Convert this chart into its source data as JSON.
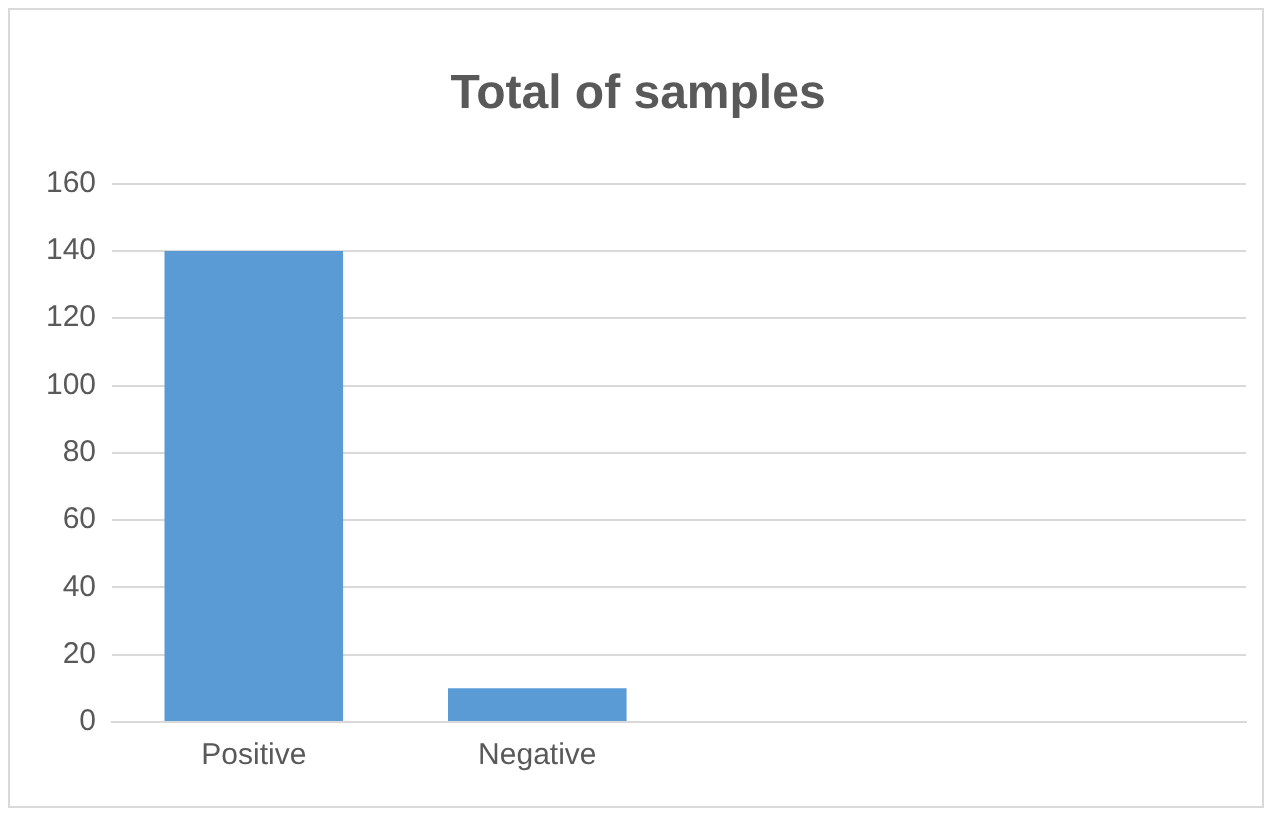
{
  "chart_data": {
    "type": "bar",
    "title": "Total of samples",
    "categories": [
      "Positive",
      "Negative",
      null,
      null
    ],
    "values": [
      140,
      10,
      null,
      null
    ],
    "color": "#5b9bd5",
    "ylim": [
      0,
      160
    ],
    "yticks": [
      0,
      20,
      40,
      60,
      80,
      100,
      120,
      140,
      160
    ],
    "grid": "y",
    "legend": false
  }
}
